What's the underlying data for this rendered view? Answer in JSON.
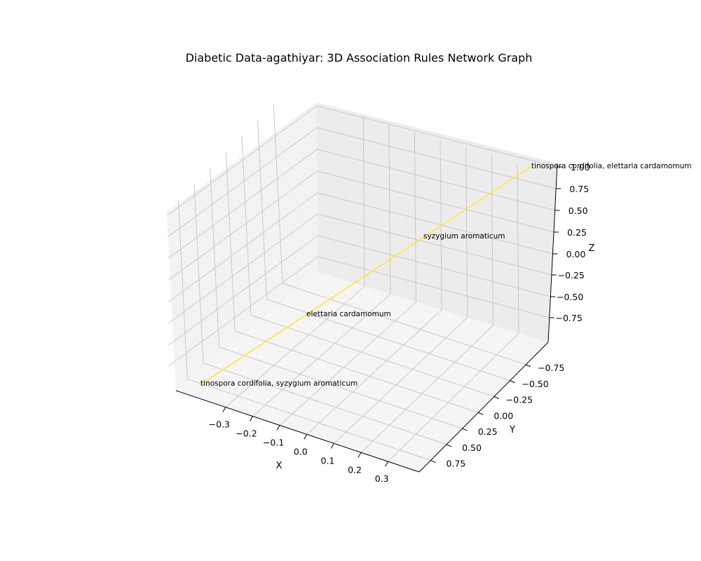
{
  "chart_data": {
    "type": "3d-network",
    "title": "Diabetic Data-agathiyar:  3D Association Rules Network Graph",
    "xlabel": "X",
    "ylabel": "Y",
    "zlabel": "Z",
    "xlim": [
      -0.38,
      0.38
    ],
    "ylim": [
      -0.85,
      0.85
    ],
    "zlim": [
      -0.95,
      1.0
    ],
    "xticks": [
      "−0.3",
      "−0.2",
      "−0.1",
      "0.0",
      "0.1",
      "0.2",
      "0.3"
    ],
    "yticks": [
      "−0.75",
      "−0.50",
      "−0.25",
      "0.00",
      "0.25",
      "0.50",
      "0.75"
    ],
    "zticks": [
      "−0.75",
      "−0.50",
      "−0.25",
      "0.00",
      "0.25",
      "0.50",
      "0.75",
      "1.00"
    ],
    "grid": true,
    "edge_color": "#fde725",
    "nodes": [
      {
        "label": "tinospora cordifolia, syzygium aromaticum",
        "x": -0.33,
        "y": -0.85,
        "z": -0.95
      },
      {
        "label": "elettaria cardamomum",
        "x": -0.11,
        "y": -0.28,
        "z": -0.3
      },
      {
        "label": "syzygium aromaticum",
        "x": 0.11,
        "y": 0.28,
        "z": 0.35
      },
      {
        "label": "tinospora cordifolia, elettaria cardamomum",
        "x": 0.33,
        "y": 0.85,
        "z": 1.0
      }
    ],
    "edges": [
      [
        0,
        3
      ]
    ]
  }
}
